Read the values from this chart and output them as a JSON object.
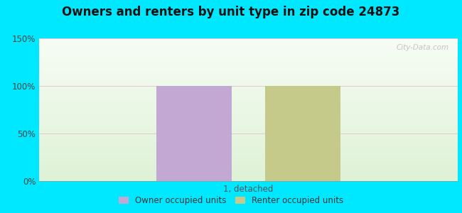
{
  "title": "Owners and renters by unit type in zip code 24873",
  "categories": [
    "1, detached"
  ],
  "owner_values": [
    100
  ],
  "renter_values": [
    100
  ],
  "owner_color": "#c4a8d4",
  "renter_color": "#c5c98a",
  "ylim": [
    0,
    150
  ],
  "yticks": [
    0,
    50,
    100,
    150
  ],
  "ytick_labels": [
    "0%",
    "50%",
    "100%",
    "150%"
  ],
  "outer_bg": "#00e8ff",
  "watermark": "City-Data.com",
  "legend_owner": "Owner occupied units",
  "legend_renter": "Renter occupied units",
  "bar_width": 0.18,
  "bar_gap": 0.08,
  "title_fontsize": 12
}
